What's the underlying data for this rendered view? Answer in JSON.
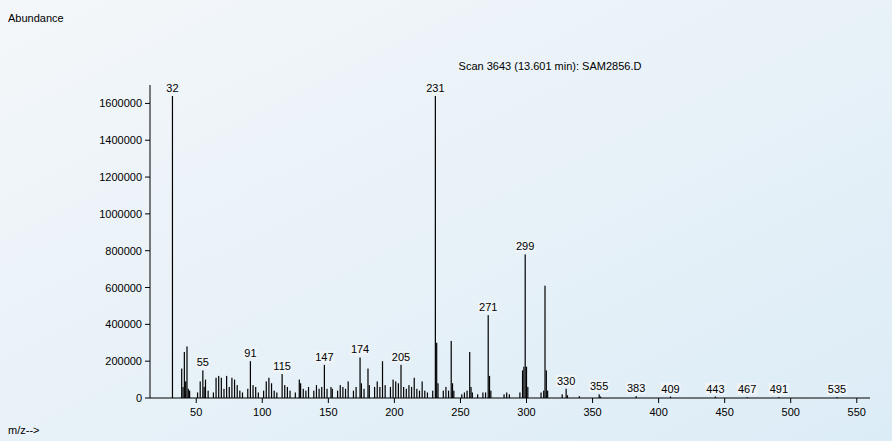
{
  "chart_data": {
    "type": "bar",
    "title": "Scan 3643 (13.601 min): SAM2856.D",
    "y_label": "Abundance",
    "x_label": "m/z-->",
    "x": [
      32,
      39,
      40,
      41,
      42,
      43,
      44,
      45,
      51,
      53,
      55,
      56,
      57,
      59,
      63,
      65,
      67,
      69,
      71,
      73,
      75,
      77,
      79,
      81,
      83,
      85,
      89,
      91,
      93,
      95,
      97,
      101,
      103,
      105,
      107,
      109,
      111,
      115,
      117,
      119,
      121,
      125,
      128,
      129,
      131,
      133,
      135,
      139,
      141,
      143,
      145,
      147,
      149,
      152,
      153,
      157,
      159,
      161,
      163,
      165,
      169,
      171,
      174,
      175,
      177,
      180,
      181,
      185,
      187,
      189,
      191,
      193,
      197,
      199,
      201,
      203,
      205,
      207,
      209,
      211,
      213,
      215,
      217,
      219,
      221,
      223,
      225,
      229,
      231,
      232,
      233,
      237,
      239,
      241,
      243,
      244,
      245,
      251,
      253,
      255,
      257,
      258,
      259,
      263,
      267,
      269,
      271,
      272,
      273,
      283,
      285,
      287,
      295,
      297,
      298,
      299,
      300,
      301,
      311,
      313,
      314,
      315,
      316,
      327,
      330,
      331,
      340,
      355,
      356,
      383,
      409,
      443,
      467,
      491,
      535
    ],
    "values": [
      1640000,
      160000,
      60000,
      250000,
      90000,
      280000,
      50000,
      40000,
      30000,
      90000,
      150000,
      60000,
      100000,
      40000,
      30000,
      110000,
      120000,
      110000,
      50000,
      120000,
      60000,
      110000,
      100000,
      70000,
      40000,
      30000,
      50000,
      200000,
      70000,
      60000,
      30000,
      40000,
      90000,
      110000,
      80000,
      40000,
      30000,
      130000,
      70000,
      60000,
      40000,
      30000,
      100000,
      80000,
      50000,
      40000,
      60000,
      40000,
      70000,
      50000,
      60000,
      180000,
      50000,
      60000,
      50000,
      40000,
      70000,
      60000,
      50000,
      90000,
      40000,
      60000,
      220000,
      80000,
      50000,
      160000,
      70000,
      60000,
      90000,
      60000,
      200000,
      70000,
      60000,
      100000,
      90000,
      80000,
      180000,
      60000,
      50000,
      70000,
      60000,
      110000,
      50000,
      40000,
      90000,
      40000,
      30000,
      40000,
      1640000,
      300000,
      80000,
      40000,
      60000,
      40000,
      310000,
      80000,
      40000,
      20000,
      30000,
      40000,
      250000,
      60000,
      30000,
      20000,
      30000,
      30000,
      450000,
      120000,
      40000,
      20000,
      30000,
      20000,
      30000,
      150000,
      170000,
      780000,
      170000,
      60000,
      30000,
      40000,
      610000,
      150000,
      40000,
      20000,
      50000,
      15000,
      10000,
      20000,
      8000,
      10000,
      8000,
      8000,
      5000,
      5000,
      5000
    ],
    "annotations": [
      32,
      55,
      91,
      115,
      147,
      174,
      205,
      231,
      271,
      299,
      330,
      355,
      383,
      409,
      443,
      467,
      491,
      535
    ],
    "color": "#000000",
    "xlim": [
      15,
      560
    ],
    "xticks": [
      50,
      100,
      150,
      200,
      250,
      300,
      350,
      400,
      450,
      500,
      550
    ],
    "ylim": [
      0,
      1700000
    ],
    "yticks": [
      0,
      200000,
      400000,
      600000,
      800000,
      1000000,
      1200000,
      1400000,
      1600000
    ],
    "grid": false
  }
}
